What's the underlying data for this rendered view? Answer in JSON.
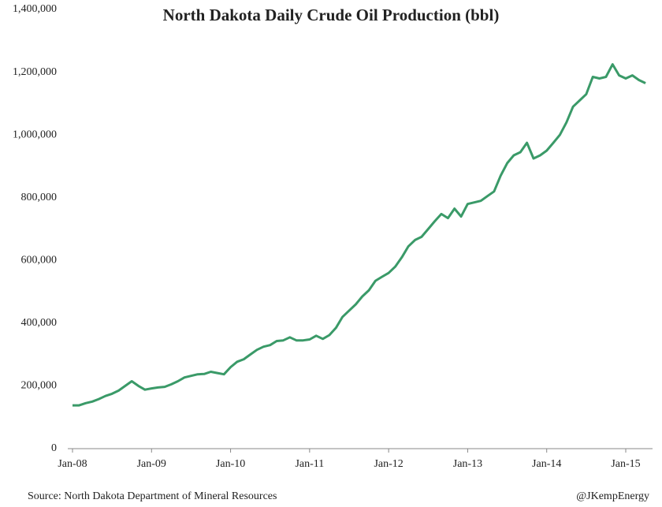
{
  "chart_data": {
    "type": "line",
    "title": "North Dakota Daily Crude Oil Production (bbl)",
    "source": "Source:  North Dakota Department of Mineral Resources",
    "credit": "@JKempEnergy",
    "categories": [
      "Jan-08",
      null,
      null,
      null,
      null,
      null,
      null,
      null,
      null,
      null,
      null,
      null,
      "Jan-09",
      null,
      null,
      null,
      null,
      null,
      null,
      null,
      null,
      null,
      null,
      null,
      "Jan-10",
      null,
      null,
      null,
      null,
      null,
      null,
      null,
      null,
      null,
      null,
      null,
      "Jan-11",
      null,
      null,
      null,
      null,
      null,
      null,
      null,
      null,
      null,
      null,
      null,
      "Jan-12",
      null,
      null,
      null,
      null,
      null,
      null,
      null,
      null,
      null,
      null,
      null,
      "Jan-13",
      null,
      null,
      null,
      null,
      null,
      null,
      null,
      null,
      null,
      null,
      null,
      "Jan-14",
      null,
      null,
      null,
      null,
      null,
      null,
      null,
      null,
      null,
      null,
      null,
      "Jan-15",
      null,
      null,
      null
    ],
    "series": [
      {
        "name": "Production",
        "color": "#3a9a68",
        "values": [
          138000,
          138000,
          145000,
          150000,
          158000,
          168000,
          175000,
          185000,
          200000,
          215000,
          200000,
          188000,
          192000,
          195000,
          197000,
          205000,
          215000,
          227000,
          232000,
          237000,
          238000,
          245000,
          241000,
          237000,
          260000,
          277000,
          285000,
          300000,
          315000,
          325000,
          330000,
          343000,
          345000,
          355000,
          345000,
          345000,
          348000,
          360000,
          350000,
          362000,
          385000,
          420000,
          440000,
          460000,
          485000,
          505000,
          535000,
          548000,
          560000,
          580000,
          610000,
          645000,
          665000,
          675000,
          700000,
          725000,
          748000,
          735000,
          765000,
          740000,
          780000,
          785000,
          790000,
          805000,
          820000,
          870000,
          910000,
          935000,
          945000,
          975000,
          925000,
          935000,
          950000,
          975000,
          1000000,
          1040000,
          1090000,
          1110000,
          1130000,
          1185000,
          1180000,
          1185000,
          1225000,
          1190000,
          1180000,
          1190000,
          1175000,
          1165000
        ]
      }
    ],
    "ylim": [
      0,
      1400000
    ],
    "yticks": [
      0,
      {
        "value": 200000,
        "label": "200,000"
      },
      {
        "value": 400000,
        "label": "400,000"
      },
      {
        "value": 600000,
        "label": "600,000"
      },
      {
        "value": 800000,
        "label": "800,000"
      },
      {
        "value": 1000000,
        "label": "1,000,000"
      },
      {
        "value": 1200000,
        "label": "1,200,000"
      },
      {
        "value": 1400000,
        "label": "1,400,000"
      }
    ],
    "grid": false
  }
}
